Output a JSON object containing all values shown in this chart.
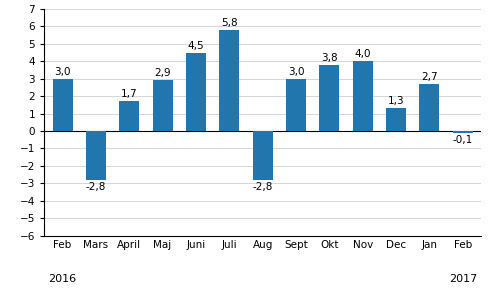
{
  "categories": [
    "Feb",
    "Mars",
    "April",
    "Maj",
    "Juni",
    "Juli",
    "Aug",
    "Sept",
    "Okt",
    "Nov",
    "Dec",
    "Jan",
    "Feb"
  ],
  "values": [
    3.0,
    -2.8,
    1.7,
    2.9,
    4.5,
    5.8,
    -2.8,
    3.0,
    3.8,
    4.0,
    1.3,
    2.7,
    -0.1
  ],
  "bar_color": "#2176AE",
  "ylim": [
    -6,
    7
  ],
  "yticks": [
    -6,
    -5,
    -4,
    -3,
    -2,
    -1,
    0,
    1,
    2,
    3,
    4,
    5,
    6,
    7
  ],
  "tick_fontsize": 7.5,
  "year_fontsize": 8.0,
  "bar_label_fontsize": 7.5,
  "background_color": "#ffffff",
  "grid_color": "#d0d0d0"
}
